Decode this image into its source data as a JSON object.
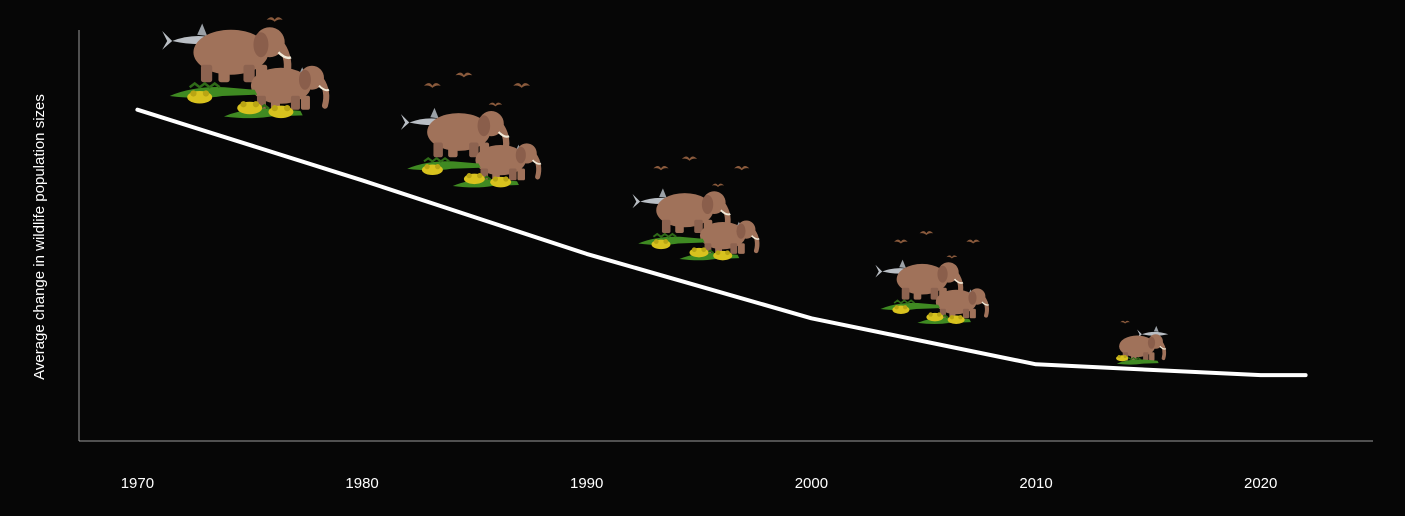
{
  "chart_data": {
    "type": "line",
    "title": "",
    "xlabel": "",
    "ylabel": "Average change in wildlife population sizes",
    "x": [
      1970,
      1980,
      1990,
      2000,
      2010,
      2020,
      2022
    ],
    "series": [
      {
        "values": [
          100,
          77,
          53,
          32,
          17,
          13.5,
          13.5
        ]
      }
    ],
    "xlim": [
      1967.4,
      2025
    ],
    "ylim": [
      -8,
      126
    ],
    "x_ticks": [
      "1970",
      "1980",
      "1990",
      "2000",
      "2010",
      "2020"
    ],
    "grid": false,
    "illustrations": [
      {
        "x": 1975,
        "y": 100,
        "scale": 1.25,
        "kind": "animal-group"
      },
      {
        "x": 1985,
        "y": 77,
        "scale": 1.05,
        "kind": "animal-group"
      },
      {
        "x": 1995,
        "y": 53,
        "scale": 0.95,
        "kind": "animal-group"
      },
      {
        "x": 2005.5,
        "y": 32,
        "scale": 0.85,
        "kind": "animal-group"
      },
      {
        "x": 2014.5,
        "y": 17,
        "scale": 0.6,
        "kind": "animal-group"
      }
    ],
    "colors": {
      "background": "#060606",
      "line": "#ffffff",
      "axis": "#9a9a9a",
      "elephant": "#a0725a",
      "crocodile": "#3f8a22",
      "frog": "#d8c21e",
      "shark": "#b9bec4",
      "bird": "#8a5a3c"
    }
  }
}
